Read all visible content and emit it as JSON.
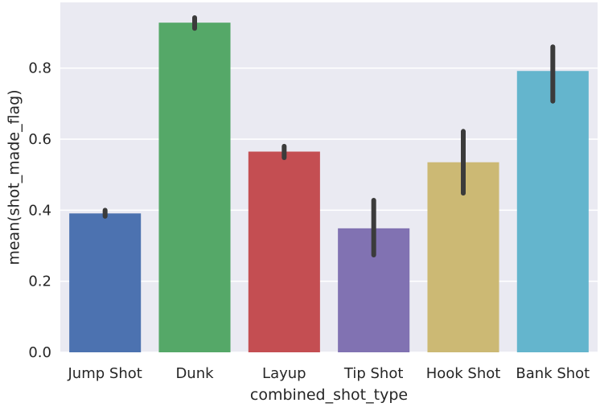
{
  "chart_data": {
    "type": "bar",
    "title": "",
    "xlabel": "combined_shot_type",
    "ylabel": "mean(shot_made_flag)",
    "categories": [
      "Jump Shot",
      "Dunk",
      "Layup",
      "Tip Shot",
      "Hook Shot",
      "Bank Shot"
    ],
    "values": [
      0.391,
      0.928,
      0.565,
      0.349,
      0.535,
      0.792
    ],
    "error_bars": [
      [
        0.383,
        0.4
      ],
      [
        0.912,
        0.942
      ],
      [
        0.548,
        0.58
      ],
      [
        0.274,
        0.428
      ],
      [
        0.448,
        0.622
      ],
      [
        0.707,
        0.86
      ]
    ],
    "colors": [
      "#4c72b0",
      "#55a868",
      "#c44e52",
      "#8172b2",
      "#ccb974",
      "#64b5cd"
    ],
    "ylim": [
      0,
      0.985
    ],
    "yticks": [
      "0.0",
      "0.2",
      "0.4",
      "0.6",
      "0.8"
    ],
    "ytick_values": [
      0,
      0.2,
      0.4,
      0.6,
      0.8
    ],
    "grid": true,
    "background": "#eaeaf2",
    "errorbar_color": "#3b3b3b"
  }
}
